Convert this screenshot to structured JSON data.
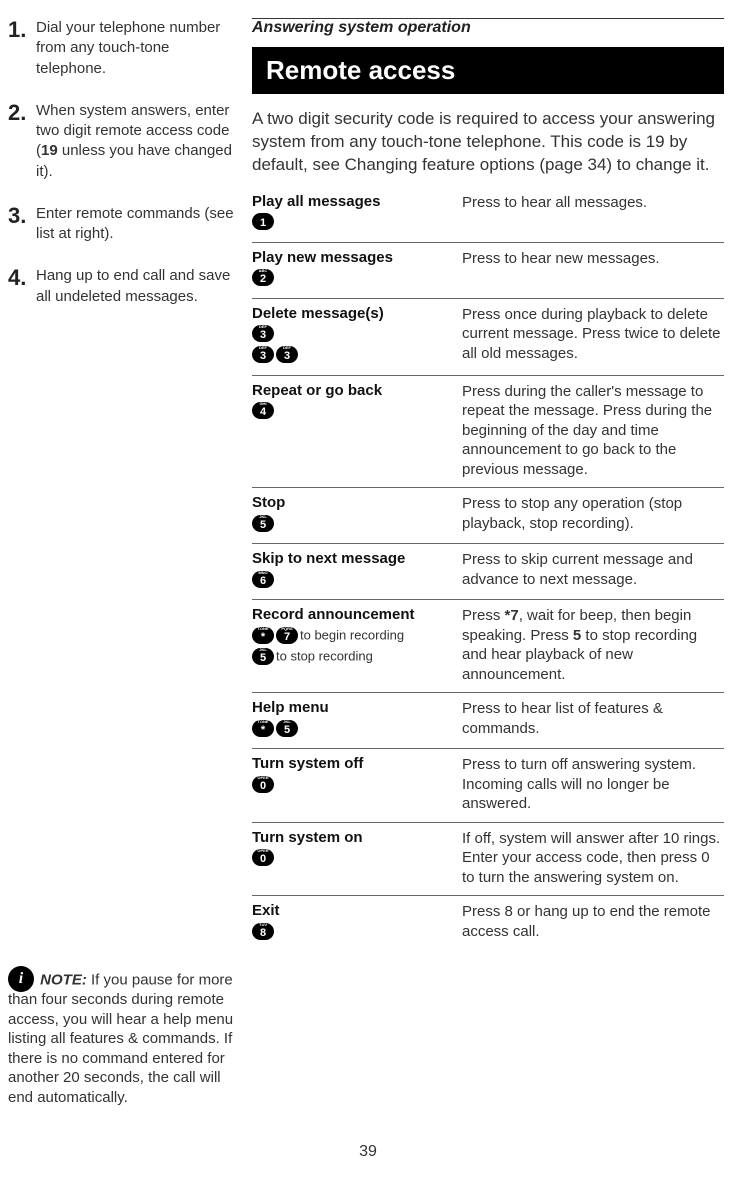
{
  "section_header": "Answering system operation",
  "black_bar": "Remote access",
  "intro": "A two digit security code is required to access your answering system from any touch-tone telephone.  This code is 19 by default, see Changing feature options (page 34) to change it.",
  "steps": [
    {
      "num": "1.",
      "text": "Dial your telephone number from any touch-tone telephone."
    },
    {
      "num": "2.",
      "text_html": "When system answers, enter two digit remote access code (<b>19</b> unless you have changed it)."
    },
    {
      "num": "3.",
      "text": "Enter remote commands (see list at right)."
    },
    {
      "num": "4.",
      "text": "Hang up to end call and save all undeleted messages."
    }
  ],
  "commands": [
    {
      "title": "Play all messages",
      "keys": [
        {
          "sup": "",
          "num": "1"
        }
      ],
      "desc": "Press to hear all messages."
    },
    {
      "title": "Play new messages",
      "keys": [
        {
          "sup": "ABC",
          "num": "2"
        }
      ],
      "desc": "Press to hear new messages."
    },
    {
      "title": "Delete message(s)",
      "keys": [
        {
          "sup": "DEF",
          "num": "3"
        }
      ],
      "keys2": [
        {
          "sup": "DEF",
          "num": "3"
        },
        {
          "sup": "DEF",
          "num": "3"
        }
      ],
      "desc": "Press once during playback to delete current message. Press twice to delete all old messages."
    },
    {
      "title": "Repeat or go back",
      "keys": [
        {
          "sup": "GHI",
          "num": "4"
        }
      ],
      "desc": "Press during the caller's message to repeat the message. Press during the beginning of the day and time announcement to go back to the previous message."
    },
    {
      "title": "Stop",
      "keys": [
        {
          "sup": "JKL",
          "num": "5"
        }
      ],
      "desc": "Press to stop any operation (stop playback, stop recording)."
    },
    {
      "title": "Skip to next message",
      "keys": [
        {
          "sup": "MNO",
          "num": "6"
        }
      ],
      "desc": "Press to skip current message and advance to next message."
    },
    {
      "title": "Record announcement",
      "keys_html": true,
      "desc_html": "Press <b>*7</b>, wait for beep, then begin speaking. Press <b>5</b> to stop recording and hear playback of new announcement."
    },
    {
      "title": "Help menu",
      "keys": [
        {
          "sup": "TONE",
          "num": "*"
        },
        {
          "sup": "JKL",
          "num": "5"
        }
      ],
      "desc": "Press to hear list of features & commands."
    },
    {
      "title": "Turn system off",
      "keys": [
        {
          "sup": "OPER",
          "num": "0"
        }
      ],
      "desc": "Press to turn off answering system. Incoming calls will no longer be answered."
    },
    {
      "title": "Turn system on",
      "keys": [
        {
          "sup": "OPER",
          "num": "0"
        }
      ],
      "desc": "If off, system will answer after 10 rings. Enter your access code, then press 0 to turn the answering system on."
    },
    {
      "title": "Exit",
      "keys": [
        {
          "sup": "TUV",
          "num": "8"
        }
      ],
      "desc": "Press 8 or hang up to end the remote access call."
    }
  ],
  "record_aux": {
    "line1_keys": [
      {
        "sup": "TONE",
        "num": "*"
      },
      {
        "sup": "PQRS",
        "num": "7"
      }
    ],
    "line1_text": "to begin recording",
    "line2_keys": [
      {
        "sup": "JKL",
        "num": "5"
      }
    ],
    "line2_text": "to stop recording"
  },
  "note": {
    "icon": "i",
    "label": "NOTE:",
    "text": "If you pause for more than four seconds during remote access, you will hear a help menu listing all features & commands. If there is no command entered for another 20 seconds, the call will end automatically."
  },
  "page_num": "39"
}
